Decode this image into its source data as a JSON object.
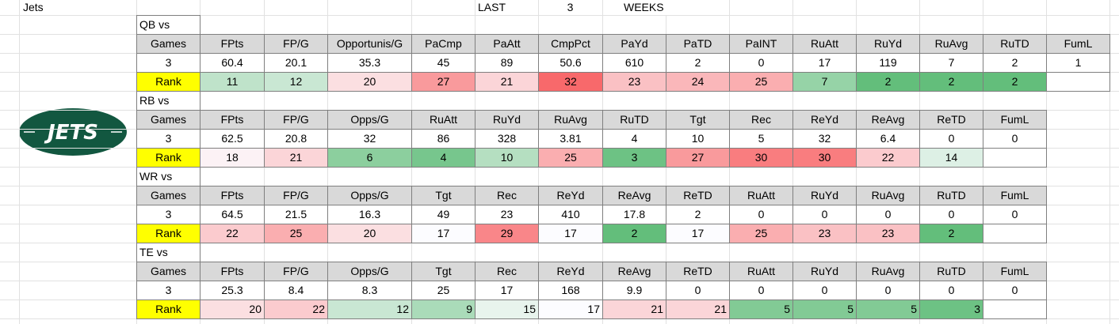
{
  "header": {
    "team": "Jets",
    "label": "LAST",
    "weeks": 3,
    "unit": "WEEKS"
  },
  "logo_text": "JETS",
  "sections": [
    {
      "title": "QB vs",
      "columns": [
        "Games",
        "FPts",
        "FP/G",
        "Opportunis/G",
        "PaCmp",
        "PaAtt",
        "CmpPct",
        "PaYd",
        "PaTD",
        "PaINT",
        "RuAtt",
        "RuYd",
        "RuAvg",
        "RuTD",
        "FumL"
      ],
      "values": [
        3,
        60.4,
        20.1,
        35.3,
        45,
        89,
        50.6,
        610,
        2,
        0,
        17,
        119,
        7,
        2,
        1
      ],
      "rank_label": "Rank",
      "ranks": [
        11,
        12,
        20,
        27,
        21,
        32,
        23,
        24,
        25,
        7,
        2,
        2,
        2
      ],
      "rank_align": "center"
    },
    {
      "title": "RB vs",
      "columns": [
        "Games",
        "FPts",
        "FP/G",
        "Opps/G",
        "RuAtt",
        "RuYd",
        "RuAvg",
        "RuTD",
        "Tgt",
        "Rec",
        "ReYd",
        "ReAvg",
        "ReTD",
        "FumL"
      ],
      "values": [
        3,
        62.5,
        20.8,
        32,
        86,
        328,
        3.81,
        4,
        10,
        5,
        32,
        6.4,
        0,
        0
      ],
      "rank_label": "Rank",
      "ranks": [
        18,
        21,
        6,
        4,
        10,
        25,
        3,
        27,
        30,
        30,
        22,
        14
      ],
      "rank_align": "center"
    },
    {
      "title": "WR vs",
      "columns": [
        "Games",
        "FPts",
        "FP/G",
        "Opps/G",
        "Tgt",
        "Rec",
        "ReYd",
        "ReAvg",
        "ReTD",
        "RuAtt",
        "RuYd",
        "RuAvg",
        "RuTD",
        "FumL"
      ],
      "values": [
        3,
        64.5,
        21.5,
        16.3,
        49,
        23,
        410,
        17.8,
        2,
        0,
        0,
        0,
        0,
        0
      ],
      "rank_label": "Rank",
      "ranks": [
        22,
        25,
        20,
        17,
        29,
        17,
        2,
        17,
        25,
        23,
        23,
        2
      ],
      "rank_align": "center"
    },
    {
      "title": "TE vs",
      "columns": [
        "Games",
        "FPts",
        "FP/G",
        "Opps/G",
        "Tgt",
        "Rec",
        "ReYd",
        "ReAvg",
        "ReTD",
        "RuAtt",
        "RuYd",
        "RuAvg",
        "RuTD",
        "FumL"
      ],
      "values": [
        3,
        25.3,
        8.4,
        8.3,
        25,
        17,
        168,
        9.9,
        0,
        0,
        0,
        0,
        0,
        0
      ],
      "rank_label": "Rank",
      "ranks": [
        20,
        22,
        12,
        9,
        15,
        17,
        21,
        21,
        5,
        5,
        5,
        3
      ],
      "rank_align": "right"
    }
  ]
}
